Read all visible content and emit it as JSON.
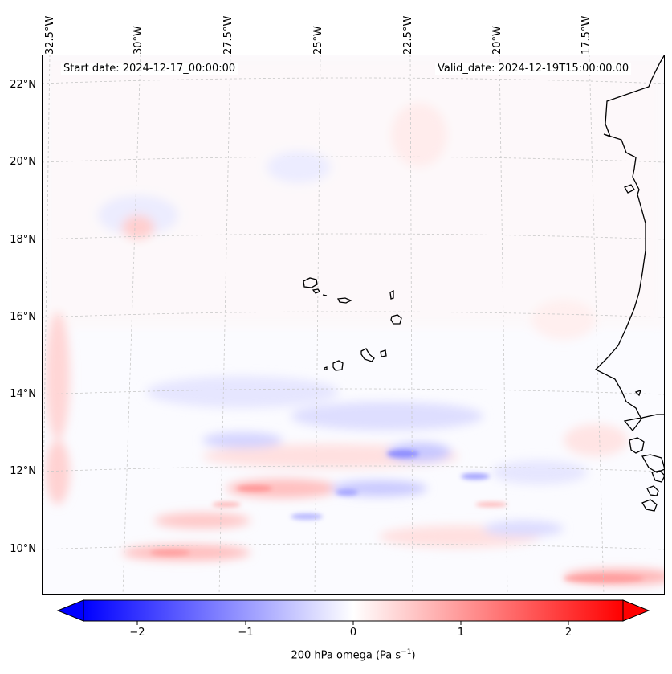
{
  "map": {
    "start_date": "Start date: 2024-12-17_00:00:00",
    "valid_date": "Valid_date: 2024-12-19T15:00:00.00",
    "lon_labels": [
      "32.5°W",
      "30°W",
      "27.5°W",
      "25°W",
      "22.5°W",
      "20°W",
      "17.5°W"
    ],
    "lat_labels": [
      "22°N",
      "20°N",
      "18°N",
      "16°N",
      "14°N",
      "12°N",
      "10°N"
    ],
    "colorbar": {
      "ticks": [
        "−2",
        "−1",
        "0",
        "1",
        "2"
      ],
      "label": "200 hPa omega (Pa s",
      "label_exp": "−1",
      "label_close": ")",
      "range": [
        -2.5,
        2.5
      ],
      "colormap": "bwr",
      "neg_color": "#0000ff",
      "zero_color": "#ffffff",
      "pos_color": "#ff0000"
    },
    "coastline_color": "#000000",
    "gridline_color": "#c8c8c8",
    "features": [
      "cape-verde-islands",
      "west-africa-coast"
    ]
  }
}
